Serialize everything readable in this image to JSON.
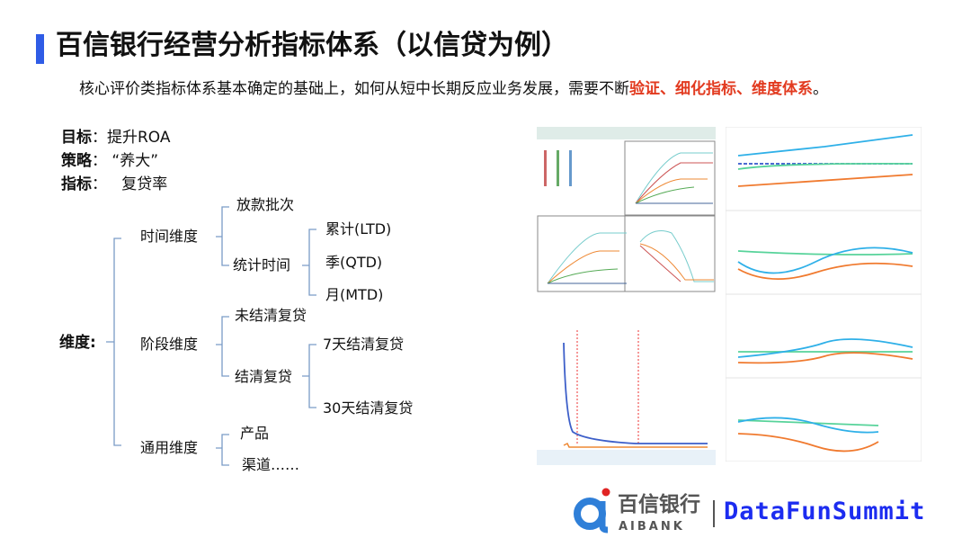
{
  "title": "百信银行经营分析指标体系（以信贷为例）",
  "subtitle": {
    "prefix": "核心评价类指标体系基本确定的基础上，如何从短中长期反应业务发展，需要不断",
    "highlight": "验证、细化指标、维度体系",
    "suffix": "。"
  },
  "goals": [
    {
      "key": "目标",
      "value": "提升ROA"
    },
    {
      "key": "策略",
      "value": "“养大”"
    },
    {
      "key": "指标",
      "value": "复贷率"
    }
  ],
  "dimension": {
    "label": "维度",
    "groups": [
      {
        "label": "时间维度",
        "children": [
          {
            "label": "放款批次"
          },
          {
            "label": "统计时间",
            "children": [
              "累计(LTD)",
              "季(QTD)",
              "月(MTD)"
            ]
          }
        ]
      },
      {
        "label": "阶段维度",
        "children": [
          {
            "label": "未结清复贷"
          },
          {
            "label": "结清复贷",
            "children": [
              "7天结清复贷",
              "30天结清复贷"
            ]
          }
        ]
      },
      {
        "label": "通用维度",
        "children": [
          {
            "label": "产品"
          },
          {
            "label": "渠道……"
          }
        ]
      }
    ]
  },
  "colors": {
    "accent": "#2f5ce6",
    "highlight": "#e23a1f",
    "brand_blue": "#1c2cf0"
  },
  "footer": {
    "bank_cn": "百信银行",
    "bank_en": "AIBANK",
    "summit": "DataFunSummit"
  }
}
